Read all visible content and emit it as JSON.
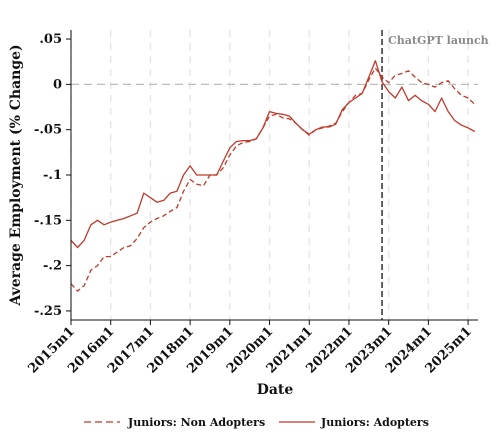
{
  "chart_data": {
    "type": "line",
    "title": "",
    "xlabel": "Date",
    "ylabel": "Average Employment (% Change)",
    "x_ticks": [
      "2015m1",
      "2016m1",
      "2017m1",
      "2018m1",
      "2019m1",
      "2020m1",
      "2021m1",
      "2022m1",
      "2023m1",
      "2024m1",
      "2025m1"
    ],
    "y_ticks": [
      ".05",
      "0",
      "-.05",
      "-.1",
      "-.15",
      "-.2",
      "-.25"
    ],
    "xlim": [
      "2015m1",
      "2025m4"
    ],
    "ylim": [
      -0.26,
      0.06
    ],
    "reference_line_y": 0,
    "vertical_line": {
      "x": "2022m11",
      "label": "ChatGPT launch"
    },
    "grid": "vertical dashed at year ticks",
    "legend_position": "bottom",
    "series": [
      {
        "name": "Juniors: Non Adopters",
        "style": "dashed",
        "color": "#c0392b",
        "points": [
          [
            "2015m1",
            -0.22
          ],
          [
            "2015m3",
            -0.228
          ],
          [
            "2015m5",
            -0.222
          ],
          [
            "2015m7",
            -0.205
          ],
          [
            "2015m9",
            -0.2
          ],
          [
            "2015m11",
            -0.19
          ],
          [
            "2016m1",
            -0.19
          ],
          [
            "2016m3",
            -0.185
          ],
          [
            "2016m5",
            -0.18
          ],
          [
            "2016m7",
            -0.178
          ],
          [
            "2016m9",
            -0.17
          ],
          [
            "2016m11",
            -0.158
          ],
          [
            "2017m1",
            -0.152
          ],
          [
            "2017m3",
            -0.148
          ],
          [
            "2017m5",
            -0.145
          ],
          [
            "2017m7",
            -0.14
          ],
          [
            "2017m9",
            -0.136
          ],
          [
            "2017m11",
            -0.118
          ],
          [
            "2018m1",
            -0.105
          ],
          [
            "2018m3",
            -0.11
          ],
          [
            "2018m5",
            -0.112
          ],
          [
            "2018m7",
            -0.1
          ],
          [
            "2018m9",
            -0.1
          ],
          [
            "2018m11",
            -0.092
          ],
          [
            "2019m1",
            -0.078
          ],
          [
            "2019m3",
            -0.068
          ],
          [
            "2019m5",
            -0.064
          ],
          [
            "2019m7",
            -0.063
          ],
          [
            "2019m9",
            -0.06
          ],
          [
            "2019m11",
            -0.048
          ],
          [
            "2020m1",
            -0.035
          ],
          [
            "2020m3",
            -0.033
          ],
          [
            "2020m5",
            -0.037
          ],
          [
            "2020m7",
            -0.038
          ],
          [
            "2020m9",
            -0.043
          ],
          [
            "2020m11",
            -0.05
          ],
          [
            "2021m1",
            -0.056
          ],
          [
            "2021m3",
            -0.05
          ],
          [
            "2021m5",
            -0.048
          ],
          [
            "2021m7",
            -0.046
          ],
          [
            "2021m9",
            -0.043
          ],
          [
            "2021m11",
            -0.03
          ],
          [
            "2022m1",
            -0.02
          ],
          [
            "2022m3",
            -0.012
          ],
          [
            "2022m5",
            -0.01
          ],
          [
            "2022m7",
            0.005
          ],
          [
            "2022m9",
            0.018
          ],
          [
            "2022m11",
            0.008
          ],
          [
            "2023m1",
            0.002
          ],
          [
            "2023m3",
            0.01
          ],
          [
            "2023m5",
            0.012
          ],
          [
            "2023m7",
            0.015
          ],
          [
            "2023m9",
            0.008
          ],
          [
            "2023m11",
            0.002
          ],
          [
            "2024m1",
            0.0
          ],
          [
            "2024m3",
            -0.003
          ],
          [
            "2024m5",
            0.002
          ],
          [
            "2024m7",
            0.004
          ],
          [
            "2024m9",
            -0.005
          ],
          [
            "2024m11",
            -0.012
          ],
          [
            "2025m1",
            -0.015
          ],
          [
            "2025m3",
            -0.022
          ]
        ]
      },
      {
        "name": "Juniors: Adopters",
        "style": "solid",
        "color": "#c0392b",
        "points": [
          [
            "2015m1",
            -0.172
          ],
          [
            "2015m3",
            -0.18
          ],
          [
            "2015m5",
            -0.172
          ],
          [
            "2015m7",
            -0.155
          ],
          [
            "2015m9",
            -0.15
          ],
          [
            "2015m11",
            -0.155
          ],
          [
            "2016m1",
            -0.152
          ],
          [
            "2016m3",
            -0.15
          ],
          [
            "2016m5",
            -0.148
          ],
          [
            "2016m7",
            -0.145
          ],
          [
            "2016m9",
            -0.142
          ],
          [
            "2016m11",
            -0.12
          ],
          [
            "2017m1",
            -0.125
          ],
          [
            "2017m3",
            -0.13
          ],
          [
            "2017m5",
            -0.128
          ],
          [
            "2017m7",
            -0.12
          ],
          [
            "2017m9",
            -0.118
          ],
          [
            "2017m11",
            -0.1
          ],
          [
            "2018m1",
            -0.09
          ],
          [
            "2018m3",
            -0.1
          ],
          [
            "2018m5",
            -0.1
          ],
          [
            "2018m7",
            -0.1
          ],
          [
            "2018m9",
            -0.1
          ],
          [
            "2018m11",
            -0.085
          ],
          [
            "2019m1",
            -0.07
          ],
          [
            "2019m3",
            -0.063
          ],
          [
            "2019m5",
            -0.062
          ],
          [
            "2019m7",
            -0.062
          ],
          [
            "2019m9",
            -0.06
          ],
          [
            "2019m11",
            -0.048
          ],
          [
            "2020m1",
            -0.03
          ],
          [
            "2020m3",
            -0.032
          ],
          [
            "2020m5",
            -0.033
          ],
          [
            "2020m7",
            -0.035
          ],
          [
            "2020m9",
            -0.043
          ],
          [
            "2020m11",
            -0.05
          ],
          [
            "2021m1",
            -0.055
          ],
          [
            "2021m3",
            -0.05
          ],
          [
            "2021m5",
            -0.047
          ],
          [
            "2021m7",
            -0.047
          ],
          [
            "2021m9",
            -0.044
          ],
          [
            "2021m11",
            -0.028
          ],
          [
            "2022m1",
            -0.02
          ],
          [
            "2022m3",
            -0.015
          ],
          [
            "2022m5",
            -0.01
          ],
          [
            "2022m7",
            0.008
          ],
          [
            "2022m9",
            0.026
          ],
          [
            "2022m11",
            0.003
          ],
          [
            "2023m1",
            -0.008
          ],
          [
            "2023m3",
            -0.015
          ],
          [
            "2023m5",
            -0.003
          ],
          [
            "2023m7",
            -0.018
          ],
          [
            "2023m9",
            -0.012
          ],
          [
            "2023m11",
            -0.018
          ],
          [
            "2024m1",
            -0.022
          ],
          [
            "2024m3",
            -0.03
          ],
          [
            "2024m5",
            -0.015
          ],
          [
            "2024m7",
            -0.03
          ],
          [
            "2024m9",
            -0.04
          ],
          [
            "2024m11",
            -0.045
          ],
          [
            "2025m1",
            -0.048
          ],
          [
            "2025m3",
            -0.052
          ]
        ]
      }
    ]
  }
}
